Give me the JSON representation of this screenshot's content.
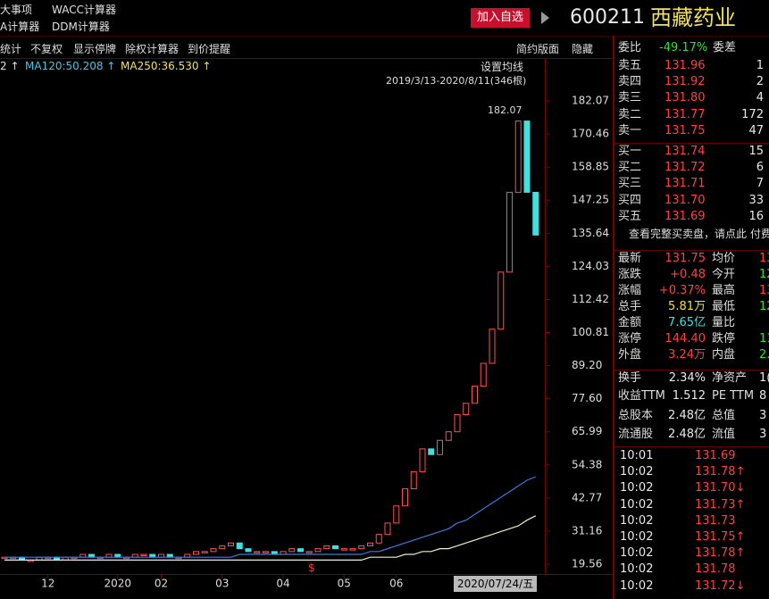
{
  "header": {
    "menu": [
      "大事项",
      "WACC计算器",
      "A计算器",
      "DDM计算器"
    ],
    "add_button": "加入自选",
    "code": "600211",
    "name": "西藏药业"
  },
  "toolbar": {
    "left": [
      "统计",
      "不复权",
      "显示停牌",
      "除权计算器",
      "到价提醒"
    ],
    "right": [
      "简约版面",
      "隐藏"
    ]
  },
  "chart_data": {
    "type": "candlestick",
    "legend": [
      {
        "text": "2 ↑",
        "color": "#e0e0e0"
      },
      {
        "text": "MA120:50.208 ↑",
        "color": "#3fc8e8"
      },
      {
        "text": "MA250:36.530 ↑",
        "color": "#f0e060"
      }
    ],
    "ma_setting": "设置均线",
    "date_range": "2019/3/13-2020/8/11(346根)",
    "peak_label": "182.07",
    "marker": "$",
    "cursor_date": "2020/07/24/五",
    "ylim": [
      19.56,
      182.07
    ],
    "yticks": [
      182.07,
      170.46,
      158.85,
      147.25,
      135.64,
      124.03,
      112.42,
      100.81,
      {
        "value": 89.2,
        "label": "89.20"
      },
      {
        "value": 77.6,
        "label": "77.60"
      },
      65.99,
      54.38,
      42.77,
      31.16,
      19.56
    ],
    "xlabels": [
      {
        "value": 5,
        "label": "12"
      },
      {
        "value": 13,
        "label": "2020"
      },
      {
        "value": 18,
        "label": "02"
      },
      {
        "value": 25,
        "label": "03"
      },
      {
        "value": 32,
        "label": "04"
      },
      {
        "value": 39,
        "label": "05"
      },
      {
        "value": 45,
        "label": "06"
      }
    ],
    "series": [
      {
        "name": "close",
        "color": "#ff5050",
        "down_color": "#40e0e0",
        "values": [
          22,
          22,
          21,
          21,
          22,
          22,
          21,
          22,
          22,
          23,
          22,
          22,
          23,
          22,
          22,
          23,
          23,
          22,
          23,
          22,
          22,
          23,
          24,
          24,
          25,
          26,
          27,
          25,
          24,
          24,
          24,
          23,
          24,
          25,
          24,
          24,
          25,
          26,
          25,
          25,
          25,
          26,
          27,
          30,
          34,
          40,
          46,
          52,
          60,
          58,
          63,
          66,
          72,
          76,
          82,
          90,
          102,
          122,
          150,
          175,
          150,
          135
        ]
      },
      {
        "name": "MA120",
        "color": "#3a7be0",
        "values": [
          22,
          22,
          22,
          22,
          22,
          22,
          22,
          22,
          22,
          22,
          22,
          22,
          22,
          22,
          22,
          22,
          22,
          22,
          22,
          22,
          22,
          22,
          22,
          22,
          22,
          22,
          22,
          23,
          23,
          23,
          23,
          23,
          23,
          23,
          23,
          23,
          23,
          23,
          23,
          23,
          23,
          23,
          24,
          24,
          25,
          26,
          27,
          28,
          29,
          30,
          31,
          32,
          34,
          35,
          37,
          39,
          41,
          43,
          45,
          47,
          49,
          50.208
        ]
      },
      {
        "name": "MA250",
        "color": "#f0f0c0",
        "values": [
          21,
          21,
          21,
          21,
          21,
          21,
          21,
          21,
          21,
          21,
          21,
          21,
          21,
          21,
          21,
          21,
          21,
          21,
          21,
          21,
          21,
          21,
          21,
          21,
          21,
          21,
          21,
          21,
          21,
          21,
          21,
          21,
          21,
          21,
          21,
          21,
          21,
          21,
          21,
          21,
          21,
          21,
          22,
          22,
          22,
          22,
          23,
          23,
          24,
          24,
          25,
          25,
          26,
          27,
          28,
          29,
          30,
          31,
          32,
          33,
          35,
          36.53
        ]
      }
    ]
  },
  "quote": {
    "ratio_label": "委比",
    "ratio": "-49.17%",
    "diff_label": "委差",
    "asks": [
      {
        "label": "卖五",
        "price": "131.96",
        "volume": "1"
      },
      {
        "label": "卖四",
        "price": "131.92",
        "volume": "2"
      },
      {
        "label": "卖三",
        "price": "131.80",
        "volume": "4"
      },
      {
        "label": "卖二",
        "price": "131.77",
        "volume": "172"
      },
      {
        "label": "卖一",
        "price": "131.75",
        "volume": "47"
      }
    ],
    "bids": [
      {
        "label": "买一",
        "price": "131.74",
        "volume": "15"
      },
      {
        "label": "买二",
        "price": "131.72",
        "volume": "6"
      },
      {
        "label": "买三",
        "price": "131.71",
        "volume": "7"
      },
      {
        "label": "买四",
        "price": "131.70",
        "volume": "33"
      },
      {
        "label": "买五",
        "price": "131.69",
        "volume": "16"
      }
    ],
    "notice": "查看完整买卖盘，请点此 付费",
    "stats": [
      [
        {
          "t": "最新"
        },
        {
          "t": "131.75",
          "c": "#ff4040"
        },
        {
          "t": "均价"
        },
        {
          "t": "13",
          "c": "#ff4040"
        }
      ],
      [
        {
          "t": "涨跌"
        },
        {
          "t": "+0.48",
          "c": "#ff4040"
        },
        {
          "t": "今开"
        },
        {
          "t": "12",
          "c": "#30e030"
        }
      ],
      [
        {
          "t": "涨幅"
        },
        {
          "t": "+0.37%",
          "c": "#ff4040"
        },
        {
          "t": "最高"
        },
        {
          "t": "13",
          "c": "#ff4040"
        }
      ],
      [
        {
          "t": "总手"
        },
        {
          "t": "5.81万",
          "c": "#f0e040"
        },
        {
          "t": "最低"
        },
        {
          "t": "12",
          "c": "#30e030"
        }
      ],
      [
        {
          "t": "金额"
        },
        {
          "t": "7.65亿",
          "c": "#40e0e0"
        },
        {
          "t": "量比"
        },
        {
          "t": ""
        }
      ],
      [
        {
          "t": "涨停"
        },
        {
          "t": "144.40",
          "c": "#ff4040"
        },
        {
          "t": "跌停"
        },
        {
          "t": "11",
          "c": "#30e030"
        }
      ],
      [
        {
          "t": "外盘"
        },
        {
          "t": "3.24万",
          "c": "#ff4040"
        },
        {
          "t": "内盘"
        },
        {
          "t": "2.",
          "c": "#30e030"
        }
      ],
      [
        {
          "t": "换手"
        },
        {
          "t": "2.34%",
          "c": "#e8e8e8"
        },
        {
          "t": "净资产"
        },
        {
          "t": "1(",
          "c": "#e8e8e8"
        }
      ],
      [
        {
          "t": "收益TTM"
        },
        {
          "t": "1.512",
          "c": "#e8e8e8"
        },
        {
          "t": "PE TTM"
        },
        {
          "t": "8",
          "c": "#e8e8e8"
        }
      ],
      [
        {
          "t": "总股本"
        },
        {
          "t": "2.48亿",
          "c": "#e8e8e8"
        },
        {
          "t": "总值"
        },
        {
          "t": "3",
          "c": "#e8e8e8"
        }
      ],
      [
        {
          "t": "流通股"
        },
        {
          "t": "2.48亿",
          "c": "#e8e8e8"
        },
        {
          "t": "流值"
        },
        {
          "t": "3",
          "c": "#e8e8e8"
        }
      ]
    ],
    "ticks": [
      {
        "time": "10:01",
        "price": "131.69"
      },
      {
        "time": "10:02",
        "price": "131.78↑"
      },
      {
        "time": "10:02",
        "price": "131.70↓"
      },
      {
        "time": "10:02",
        "price": "131.73↑"
      },
      {
        "time": "10:02",
        "price": "131.73"
      },
      {
        "time": "10:02",
        "price": "131.75↑"
      },
      {
        "time": "10:02",
        "price": "131.78↑"
      },
      {
        "time": "10:02",
        "price": "131.78"
      },
      {
        "time": "10:02",
        "price": "131.72↓"
      }
    ]
  }
}
